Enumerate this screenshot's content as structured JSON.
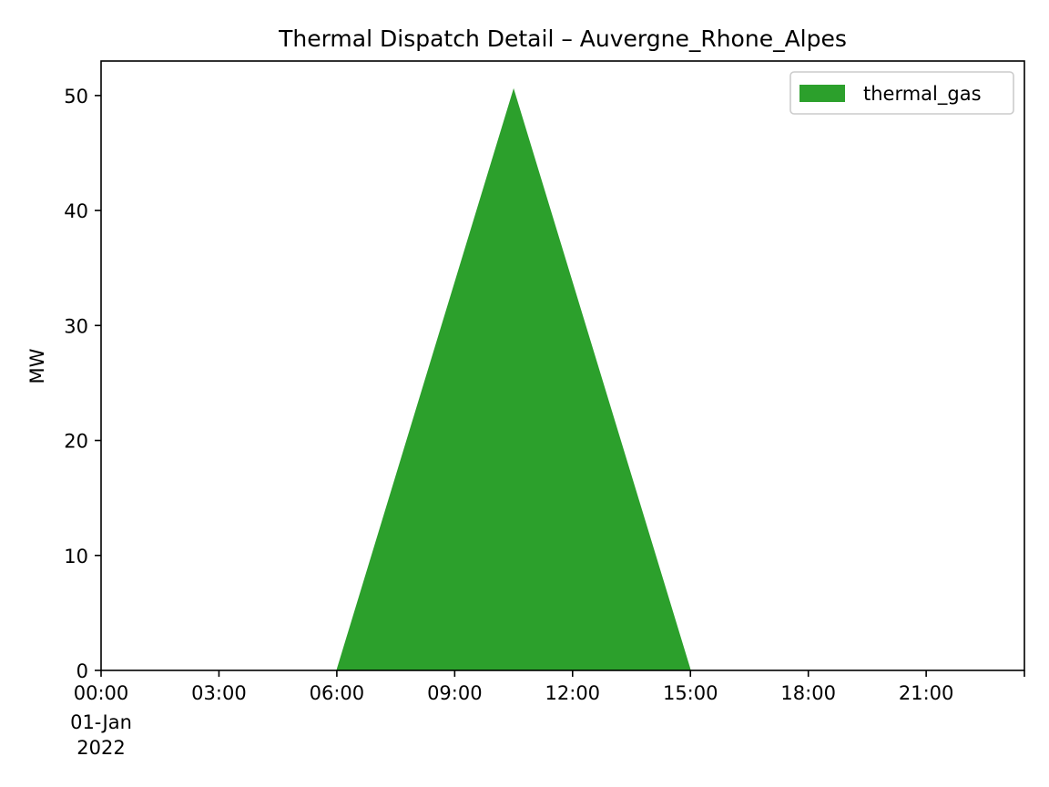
{
  "chart_data": {
    "type": "area",
    "title": "Thermal Dispatch Detail – Auvergne_Rhone_Alpes",
    "xlabel": "",
    "ylabel": "MW",
    "x_ticks": [
      "00:00",
      "03:00",
      "06:00",
      "09:00",
      "12:00",
      "15:00",
      "18:00",
      "21:00"
    ],
    "x_tick_date": [
      "01-Jan",
      "2022"
    ],
    "xlim": [
      "2022-01-01 00:00",
      "2022-01-01 23:30"
    ],
    "y_ticks": [
      0,
      10,
      20,
      30,
      40,
      50
    ],
    "ylim": [
      0,
      53
    ],
    "grid": false,
    "legend_position": "top-right",
    "series": [
      {
        "name": "thermal_gas",
        "color": "#2ca02c",
        "points": [
          {
            "x": "2022-01-01 00:00",
            "y": 0
          },
          {
            "x": "2022-01-01 06:00",
            "y": 0
          },
          {
            "x": "2022-01-01 10:30",
            "y": 50.5
          },
          {
            "x": "2022-01-01 15:00",
            "y": 0
          },
          {
            "x": "2022-01-01 23:30",
            "y": 0
          }
        ]
      }
    ]
  }
}
